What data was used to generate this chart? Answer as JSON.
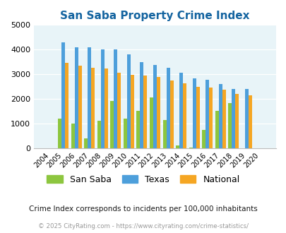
{
  "title": "San Saba Property Crime Index",
  "years": [
    2004,
    2005,
    2006,
    2007,
    2008,
    2009,
    2010,
    2011,
    2012,
    2013,
    2014,
    2015,
    2016,
    2017,
    2018,
    2019,
    2020
  ],
  "san_saba": [
    0,
    1200,
    1000,
    400,
    1100,
    1900,
    1200,
    1520,
    2050,
    1130,
    100,
    20,
    750,
    1520,
    1820,
    0,
    0
  ],
  "texas": [
    0,
    4300,
    4080,
    4100,
    4000,
    4020,
    3800,
    3500,
    3380,
    3260,
    3060,
    2840,
    2780,
    2600,
    2400,
    2390,
    0
  ],
  "national": [
    0,
    3450,
    3360,
    3250,
    3220,
    3060,
    2960,
    2950,
    2890,
    2750,
    2620,
    2500,
    2460,
    2380,
    2200,
    2140,
    0
  ],
  "san_saba_color": "#8dc63f",
  "texas_color": "#4d9fdb",
  "national_color": "#f5a623",
  "bg_color": "#e8f4f8",
  "ylim": [
    0,
    5000
  ],
  "yticks": [
    0,
    1000,
    2000,
    3000,
    4000,
    5000
  ],
  "subtitle": "Crime Index corresponds to incidents per 100,000 inhabitants",
  "footer": "© 2025 CityRating.com - https://www.cityrating.com/crime-statistics/",
  "title_color": "#1464a0",
  "subtitle_color": "#1a1a1a",
  "footer_color": "#999999",
  "legend_labels": [
    "San Saba",
    "Texas",
    "National"
  ]
}
